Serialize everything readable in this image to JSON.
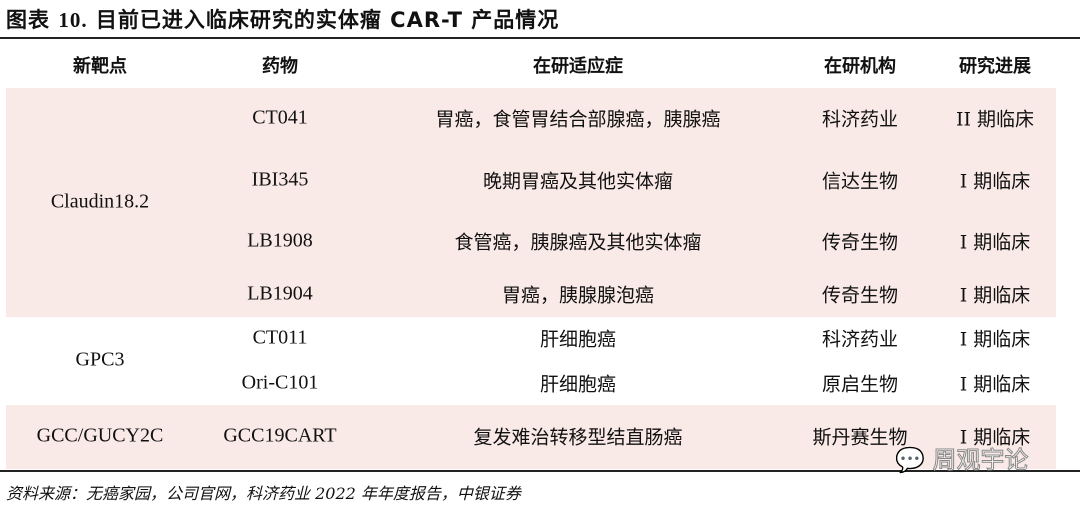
{
  "title": {
    "prefix": "图表",
    "number": "10.",
    "text": "目前已进入临床研究的实体瘤 CAR-T 产品情况"
  },
  "headers": [
    "新靶点",
    "药物",
    "在研适应症",
    "在研机构",
    "研究进展"
  ],
  "groups": [
    {
      "target": "Claudin18.2",
      "rows": [
        {
          "drug": "CT041",
          "indication": "胃癌，食管胃结合部腺癌，胰腺癌",
          "org": "科济药业",
          "stage": "II 期临床"
        },
        {
          "drug": "IBI345",
          "indication": "晚期胃癌及其他实体瘤",
          "org": "信达生物",
          "stage": "I 期临床"
        },
        {
          "drug": "LB1908",
          "indication": "食管癌，胰腺癌及其他实体瘤",
          "org": "传奇生物",
          "stage": "I 期临床"
        },
        {
          "drug": "LB1904",
          "indication": "胃癌，胰腺腺泡癌",
          "org": "传奇生物",
          "stage": "I 期临床"
        }
      ]
    },
    {
      "target": "GPC3",
      "rows": [
        {
          "drug": "CT011",
          "indication": "肝细胞癌",
          "org": "科济药业",
          "stage": "I 期临床"
        },
        {
          "drug": "Ori-C101",
          "indication": "肝细胞癌",
          "org": "原启生物",
          "stage": "I 期临床"
        }
      ]
    },
    {
      "target": "GCC/GUCY2C",
      "rows": [
        {
          "drug": "GCC19CART",
          "indication": "复发难治转移型结直肠癌",
          "org": "斯丹赛生物",
          "stage": "I 期临床"
        }
      ]
    }
  ],
  "source": "资料来源：无癌家园，公司官网，科济药业 2022 年年度报告，中银证券",
  "watermark": "周观宇论",
  "colors": {
    "band": "#f9e9e7"
  }
}
